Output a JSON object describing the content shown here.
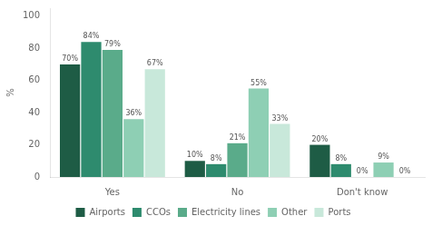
{
  "chart_data": {
    "type": "bar",
    "categories": [
      "Yes",
      "No",
      "Don't know"
    ],
    "series": [
      {
        "name": "Airports",
        "color": "#1e5c45",
        "values": [
          70,
          10,
          20
        ],
        "value_labels": [
          "70%",
          "10%",
          "20%"
        ]
      },
      {
        "name": "CCOs",
        "color": "#2e8b6e",
        "values": [
          84,
          8,
          8
        ],
        "value_labels": [
          "84%",
          "8%",
          "8%"
        ]
      },
      {
        "name": "Electricity lines",
        "color": "#5aab8a",
        "values": [
          79,
          21,
          0
        ],
        "value_labels": [
          "79%",
          "21%",
          "0%"
        ]
      },
      {
        "name": "Other",
        "color": "#8ecfb4",
        "values": [
          36,
          55,
          9
        ],
        "value_labels": [
          "36%",
          "55%",
          "9%"
        ]
      },
      {
        "name": "Ports",
        "color": "#c8e8da",
        "values": [
          67,
          33,
          0
        ],
        "value_labels": [
          "67%",
          "33%",
          "0%"
        ]
      }
    ],
    "ylabel": "%",
    "ylim": [
      0,
      105
    ],
    "yticks": [
      0,
      20,
      40,
      60,
      80,
      100
    ],
    "grid": false,
    "legend": "bottom",
    "data_labels": true
  }
}
